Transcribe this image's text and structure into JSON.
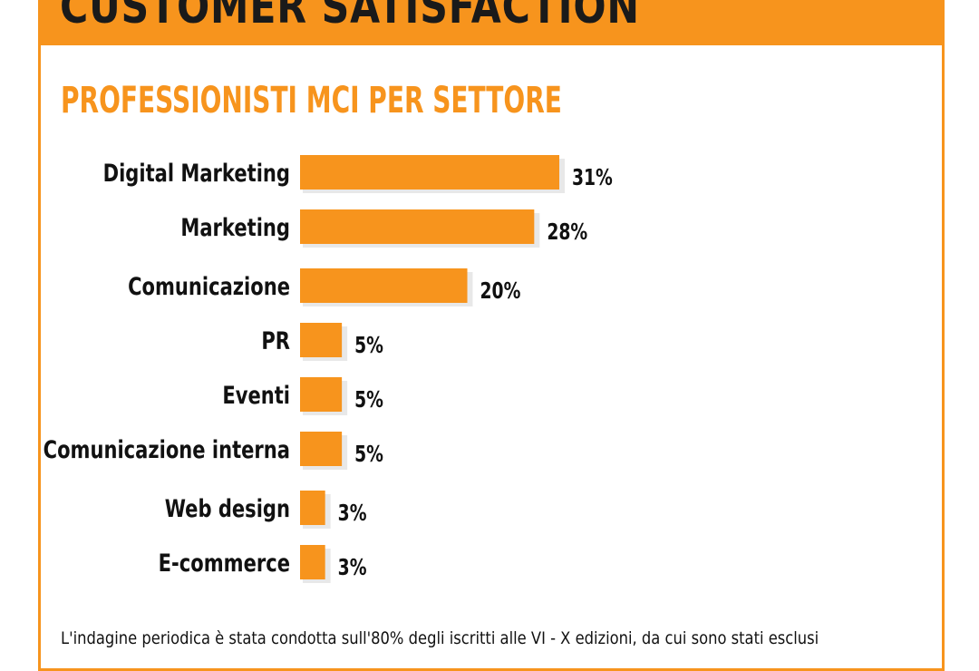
{
  "header": {
    "title": "CUSTOMER SATISFACTION"
  },
  "colors": {
    "accent": "#f7941d",
    "bar_shadow": "#e8e8e8",
    "text": "#111111"
  },
  "chart_data": {
    "type": "bar",
    "orientation": "horizontal",
    "title": "PROFESSIONISTI MCI PER SETTORE",
    "categories": [
      "Digital Marketing",
      "Marketing",
      "Comunicazione",
      "PR",
      "Eventi",
      "Comunicazione interna",
      "Web design",
      "E-commerce"
    ],
    "values": [
      31,
      28,
      20,
      5,
      5,
      5,
      3,
      3
    ],
    "value_labels": [
      "31%",
      "28%",
      "20%",
      "5%",
      "5%",
      "5%",
      "3%",
      "3%"
    ],
    "unit": "%",
    "xlim": [
      0,
      31
    ],
    "grid": false,
    "legend": "none"
  },
  "footer": {
    "note": "L'indagine periodica è stata condotta sull'80% degli iscritti alle VI - X edizioni, da cui sono stati esclusi"
  }
}
